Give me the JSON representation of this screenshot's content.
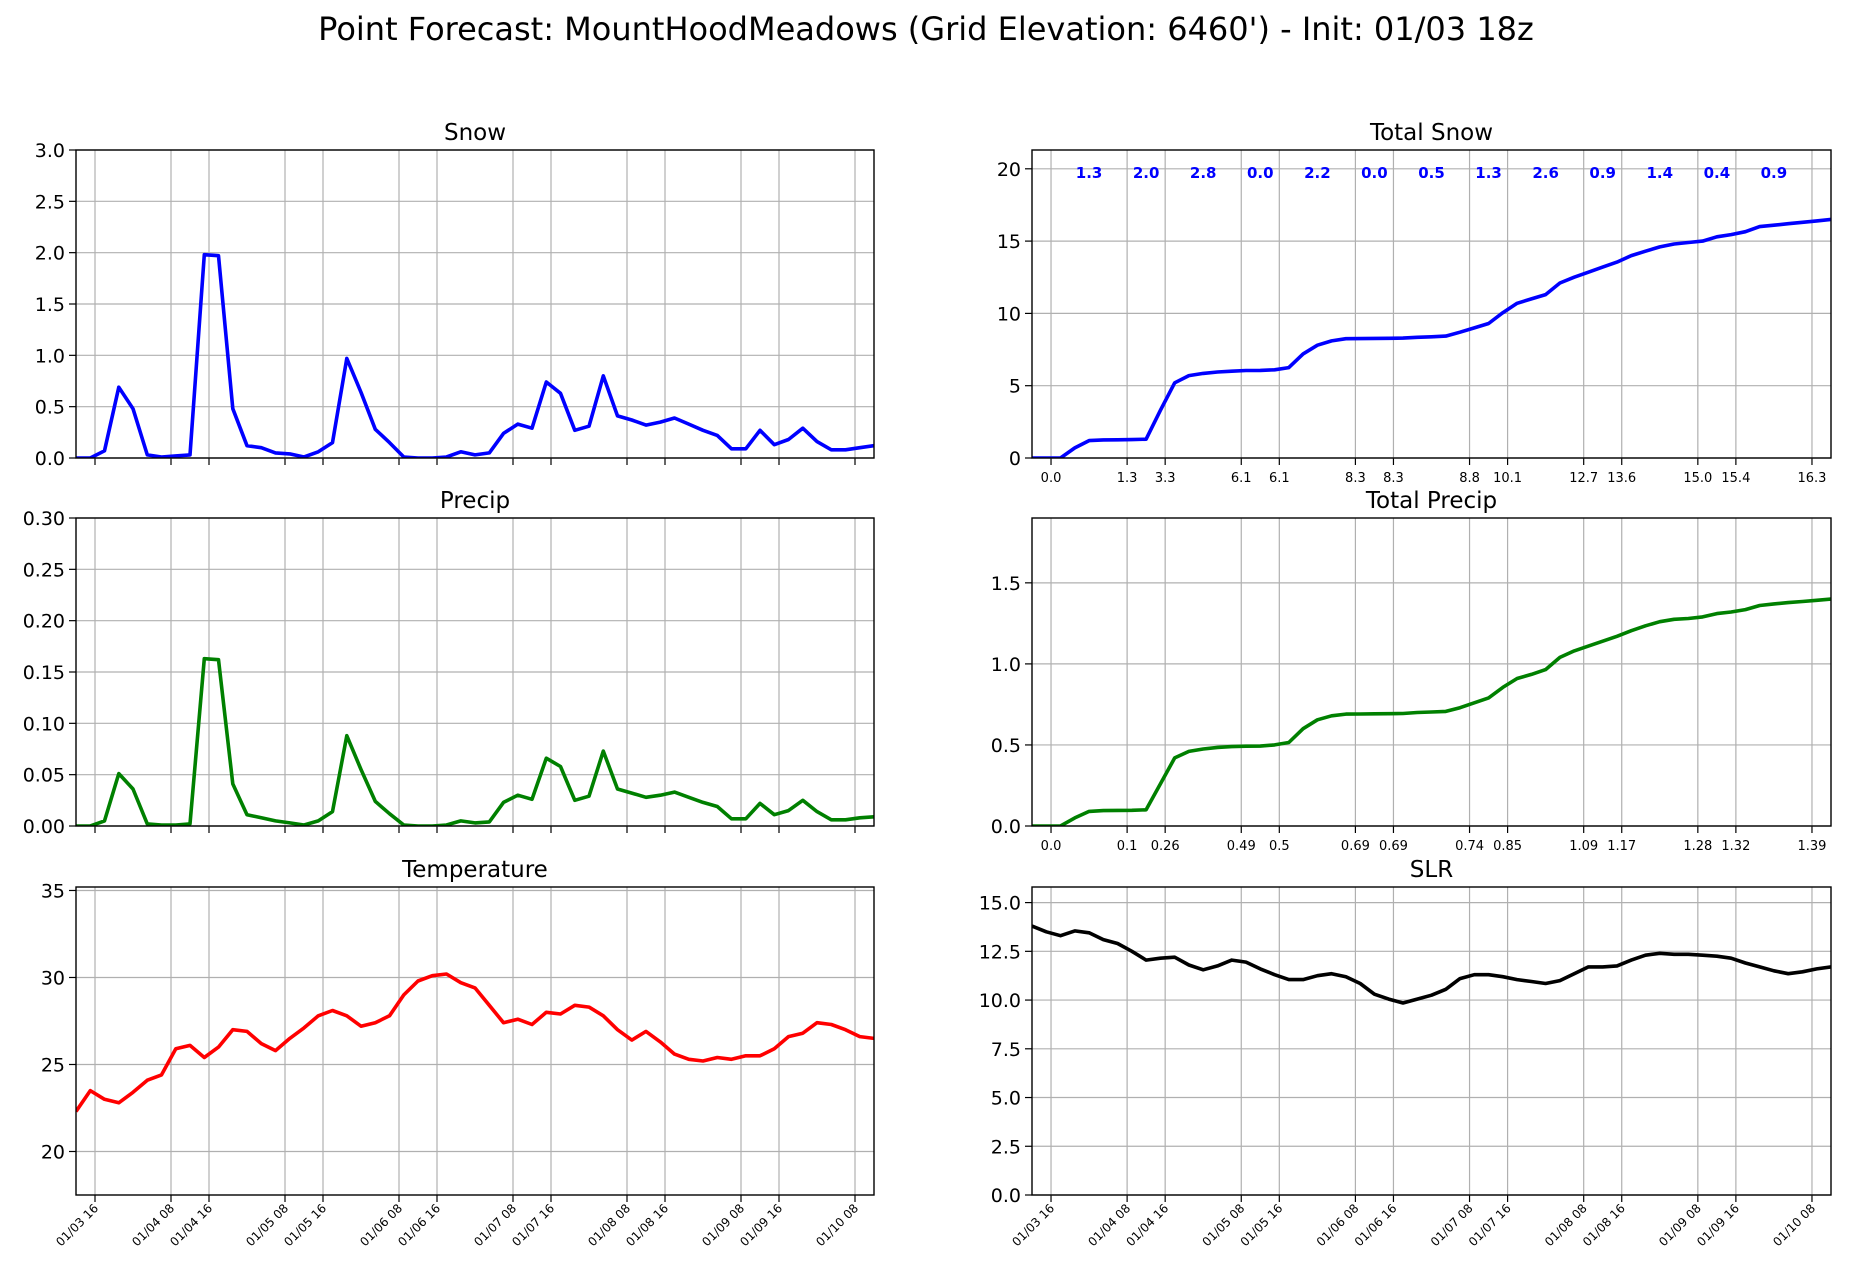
{
  "figure": {
    "title": "Point Forecast: MountHoodMeadows (Grid Elevation: 6460') - Init: 01/03 18z"
  },
  "time_axis": {
    "tick_labels": [
      "01/03 16",
      "01/04 08",
      "01/04 16",
      "01/05 08",
      "01/05 16",
      "01/06 08",
      "01/06 16",
      "01/07 08",
      "01/07 16",
      "01/08 08",
      "01/08 16",
      "01/09 08",
      "01/09 16",
      "01/10 08"
    ]
  },
  "colors": {
    "snow": "#0000ff",
    "precip": "#008000",
    "temperature": "#ff0000",
    "slr": "#000000",
    "annotation": "#0000ff",
    "grid": "#b0b0b0"
  },
  "chart_data": [
    {
      "id": "snow",
      "type": "line",
      "title": "Snow",
      "color": "#0000ff",
      "x_unit": "hours since 01/03 12z",
      "ylim": [
        0,
        3.0
      ],
      "yticks": [
        "0.0",
        "0.5",
        "1.0",
        "1.5",
        "2.0",
        "2.5",
        "3.0"
      ],
      "grid": true,
      "x": [
        0,
        3,
        6,
        9,
        12,
        15,
        18,
        21,
        24,
        27,
        30,
        33,
        36,
        39,
        42,
        45,
        48,
        51,
        54,
        57,
        60,
        63,
        66,
        69,
        72,
        75,
        78,
        81,
        84,
        87,
        90,
        93,
        96,
        99,
        102,
        105,
        108,
        111,
        114,
        117,
        120,
        123,
        126,
        129,
        132,
        135,
        138,
        141,
        144,
        147,
        150,
        153,
        156,
        159,
        162,
        165,
        168
      ],
      "values": [
        0.0,
        0.0,
        0.07,
        0.69,
        0.48,
        0.03,
        0.01,
        0.02,
        0.03,
        1.98,
        1.97,
        0.48,
        0.12,
        0.1,
        0.05,
        0.04,
        0.01,
        0.06,
        0.15,
        0.97,
        0.64,
        0.28,
        0.15,
        0.01,
        0.0,
        0.0,
        0.01,
        0.06,
        0.03,
        0.05,
        0.24,
        0.33,
        0.29,
        0.74,
        0.63,
        0.27,
        0.31,
        0.8,
        0.41,
        0.37,
        0.32,
        0.35,
        0.39,
        0.33,
        0.27,
        0.22,
        0.09,
        0.09,
        0.27,
        0.13,
        0.18,
        0.29,
        0.16,
        0.08,
        0.08,
        0.1,
        0.12
      ]
    },
    {
      "id": "total_snow",
      "type": "line",
      "title": "Total Snow",
      "color": "#0000ff",
      "x_unit": "hours since 01/03 12z",
      "ylim": [
        0,
        21.3
      ],
      "yticks": [
        "0",
        "5",
        "10",
        "15",
        "20"
      ],
      "grid": true,
      "x": [
        0,
        3,
        6,
        9,
        12,
        15,
        18,
        21,
        24,
        27,
        30,
        33,
        36,
        39,
        42,
        45,
        48,
        51,
        54,
        57,
        60,
        63,
        66,
        69,
        72,
        75,
        78,
        81,
        84,
        87,
        90,
        93,
        96,
        99,
        102,
        105,
        108,
        111,
        114,
        117,
        120,
        123,
        126,
        129,
        132,
        135,
        138,
        141,
        144,
        147,
        150,
        153,
        156,
        159,
        162,
        165,
        168
      ],
      "values": [
        0.0,
        0.0,
        0.0,
        0.7,
        1.2,
        1.25,
        1.26,
        1.27,
        1.3,
        3.3,
        5.2,
        5.7,
        5.85,
        5.95,
        6.0,
        6.05,
        6.06,
        6.1,
        6.25,
        7.2,
        7.8,
        8.1,
        8.25,
        8.26,
        8.27,
        8.28,
        8.29,
        8.35,
        8.38,
        8.43,
        8.7,
        9.0,
        9.3,
        10.05,
        10.7,
        11.0,
        11.3,
        12.1,
        12.5,
        12.85,
        13.2,
        13.55,
        14.0,
        14.3,
        14.6,
        14.8,
        14.9,
        15.0,
        15.3,
        15.45,
        15.65,
        16.0,
        16.1,
        16.2,
        16.3,
        16.4,
        16.5
      ],
      "bottom_labels": [
        "0.0",
        "1.3",
        "3.3",
        "6.1",
        "6.1",
        "8.3",
        "8.3",
        "8.8",
        "10.1",
        "12.7",
        "13.6",
        "15.0",
        "15.4",
        "16.3"
      ],
      "period_totals": [
        "1.3",
        "2.0",
        "2.8",
        "0.0",
        "2.2",
        "0.0",
        "0.5",
        "1.3",
        "2.6",
        "0.9",
        "1.4",
        "0.4",
        "0.9"
      ]
    },
    {
      "id": "precip",
      "type": "line",
      "title": "Precip",
      "color": "#008000",
      "x_unit": "hours since 01/03 12z",
      "ylim": [
        0,
        0.3
      ],
      "yticks": [
        "0.00",
        "0.05",
        "0.10",
        "0.15",
        "0.20",
        "0.25",
        "0.30"
      ],
      "grid": true,
      "x": [
        0,
        3,
        6,
        9,
        12,
        15,
        18,
        21,
        24,
        27,
        30,
        33,
        36,
        39,
        42,
        45,
        48,
        51,
        54,
        57,
        60,
        63,
        66,
        69,
        72,
        75,
        78,
        81,
        84,
        87,
        90,
        93,
        96,
        99,
        102,
        105,
        108,
        111,
        114,
        117,
        120,
        123,
        126,
        129,
        132,
        135,
        138,
        141,
        144,
        147,
        150,
        153,
        156,
        159,
        162,
        165,
        168
      ],
      "values": [
        0.0,
        0.0,
        0.005,
        0.051,
        0.036,
        0.002,
        0.001,
        0.001,
        0.002,
        0.163,
        0.162,
        0.041,
        0.011,
        0.008,
        0.005,
        0.003,
        0.001,
        0.005,
        0.014,
        0.088,
        0.055,
        0.024,
        0.012,
        0.001,
        0.0,
        0.0,
        0.001,
        0.005,
        0.003,
        0.004,
        0.023,
        0.03,
        0.026,
        0.066,
        0.058,
        0.025,
        0.029,
        0.073,
        0.036,
        0.032,
        0.028,
        0.03,
        0.033,
        0.028,
        0.023,
        0.019,
        0.007,
        0.007,
        0.022,
        0.011,
        0.015,
        0.025,
        0.014,
        0.006,
        0.006,
        0.008,
        0.009
      ]
    },
    {
      "id": "total_precip",
      "type": "line",
      "title": "Total Precip",
      "color": "#008000",
      "x_unit": "hours since 01/03 12z",
      "ylim": [
        0,
        1.9
      ],
      "yticks": [
        "0.0",
        "0.5",
        "1.0",
        "1.5"
      ],
      "grid": true,
      "x": [
        0,
        3,
        6,
        9,
        12,
        15,
        18,
        21,
        24,
        27,
        30,
        33,
        36,
        39,
        42,
        45,
        48,
        51,
        54,
        57,
        60,
        63,
        66,
        69,
        72,
        75,
        78,
        81,
        84,
        87,
        90,
        93,
        96,
        99,
        102,
        105,
        108,
        111,
        114,
        117,
        120,
        123,
        126,
        129,
        132,
        135,
        138,
        141,
        144,
        147,
        150,
        153,
        156,
        159,
        162,
        165,
        168
      ],
      "values": [
        0.0,
        0.0,
        0.0,
        0.05,
        0.09,
        0.095,
        0.096,
        0.097,
        0.1,
        0.26,
        0.42,
        0.46,
        0.475,
        0.485,
        0.49,
        0.492,
        0.493,
        0.5,
        0.515,
        0.6,
        0.655,
        0.68,
        0.69,
        0.691,
        0.692,
        0.693,
        0.694,
        0.7,
        0.703,
        0.707,
        0.73,
        0.76,
        0.79,
        0.855,
        0.91,
        0.935,
        0.965,
        1.04,
        1.08,
        1.11,
        1.14,
        1.17,
        1.205,
        1.235,
        1.26,
        1.275,
        1.28,
        1.29,
        1.31,
        1.32,
        1.335,
        1.36,
        1.37,
        1.378,
        1.385,
        1.392,
        1.4
      ],
      "bottom_labels": [
        "0.0",
        "0.1",
        "0.26",
        "0.49",
        "0.5",
        "0.69",
        "0.69",
        "0.74",
        "0.85",
        "1.09",
        "1.17",
        "1.28",
        "1.32",
        "1.39"
      ]
    },
    {
      "id": "temperature",
      "type": "line",
      "title": "Temperature",
      "color": "#ff0000",
      "x_unit": "hours since 01/03 12z",
      "ylim": [
        17.5,
        35.2
      ],
      "yticks": [
        "20",
        "25",
        "30",
        "35"
      ],
      "grid": true,
      "x": [
        0,
        3,
        6,
        9,
        12,
        15,
        18,
        21,
        24,
        27,
        30,
        33,
        36,
        39,
        42,
        45,
        48,
        51,
        54,
        57,
        60,
        63,
        66,
        69,
        72,
        75,
        78,
        81,
        84,
        87,
        90,
        93,
        96,
        99,
        102,
        105,
        108,
        111,
        114,
        117,
        120,
        123,
        126,
        129,
        132,
        135,
        138,
        141,
        144,
        147,
        150,
        153,
        156,
        159,
        162,
        165,
        168
      ],
      "values": [
        22.3,
        23.5,
        23.0,
        22.8,
        23.4,
        24.1,
        24.4,
        25.9,
        26.1,
        25.4,
        26.0,
        27.0,
        26.9,
        26.2,
        25.8,
        26.5,
        27.1,
        27.8,
        28.1,
        27.8,
        27.2,
        27.4,
        27.8,
        29.0,
        29.8,
        30.1,
        30.2,
        29.7,
        29.4,
        28.4,
        27.4,
        27.6,
        27.3,
        28.0,
        27.9,
        28.4,
        28.3,
        27.8,
        27.0,
        26.4,
        26.9,
        26.3,
        25.6,
        25.3,
        25.2,
        25.4,
        25.3,
        25.5,
        25.5,
        25.9,
        26.6,
        26.8,
        27.4,
        27.3,
        27.0,
        26.6,
        26.5
      ]
    },
    {
      "id": "slr",
      "type": "line",
      "title": "SLR",
      "color": "#000000",
      "x_unit": "hours since 01/03 12z",
      "ylim": [
        0,
        15.8
      ],
      "yticks": [
        "0.0",
        "2.5",
        "5.0",
        "7.5",
        "10.0",
        "12.5",
        "15.0"
      ],
      "grid": true,
      "x": [
        0,
        3,
        6,
        9,
        12,
        15,
        18,
        21,
        24,
        27,
        30,
        33,
        36,
        39,
        42,
        45,
        48,
        51,
        54,
        57,
        60,
        63,
        66,
        69,
        72,
        75,
        78,
        81,
        84,
        87,
        90,
        93,
        96,
        99,
        102,
        105,
        108,
        111,
        114,
        117,
        120,
        123,
        126,
        129,
        132,
        135,
        138,
        141,
        144,
        147,
        150,
        153,
        156,
        159,
        162,
        165,
        168
      ],
      "values": [
        13.8,
        13.5,
        13.3,
        13.55,
        13.45,
        13.1,
        12.9,
        12.5,
        12.05,
        12.15,
        12.2,
        11.8,
        11.55,
        11.75,
        12.05,
        11.95,
        11.6,
        11.3,
        11.05,
        11.05,
        11.25,
        11.35,
        11.2,
        10.85,
        10.3,
        10.05,
        9.85,
        10.05,
        10.25,
        10.55,
        11.1,
        11.3,
        11.3,
        11.2,
        11.05,
        10.95,
        10.85,
        11.0,
        11.35,
        11.7,
        11.7,
        11.75,
        12.05,
        12.3,
        12.4,
        12.35,
        12.35,
        12.3,
        12.25,
        12.15,
        11.9,
        11.7,
        11.5,
        11.35,
        11.45,
        11.6,
        11.7
      ]
    }
  ]
}
